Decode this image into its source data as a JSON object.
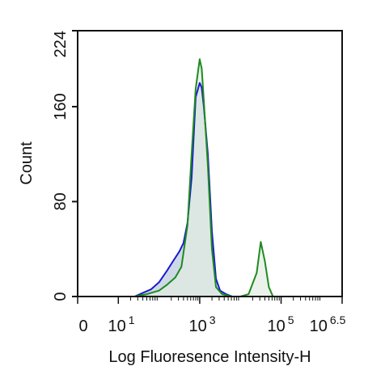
{
  "chart_data": {
    "type": "area",
    "title": "",
    "xlabel": "Log Fluoresence Intensity-H",
    "ylabel": "Count",
    "xscale": "log",
    "xlim": [
      0,
      6.5
    ],
    "ylim": [
      0,
      224
    ],
    "grid": false,
    "x_ticks": [
      {
        "base": "0",
        "exp": ""
      },
      {
        "base": "10",
        "exp": "1"
      },
      {
        "base": "10",
        "exp": "3"
      },
      {
        "base": "10",
        "exp": "5"
      },
      {
        "base": "10",
        "exp": "6.5"
      }
    ],
    "x_tick_positions": [
      0,
      1,
      3,
      5,
      6.5
    ],
    "y_ticks": [
      "0",
      "80",
      "160",
      "224"
    ],
    "y_tick_values": [
      0,
      80,
      160,
      224
    ],
    "series": [
      {
        "color": "#1a1ad0",
        "fill": "#c9d5e6",
        "x": [
          0.3,
          0.8,
          1.1,
          1.4,
          1.6,
          1.8,
          2.0,
          2.2,
          2.35,
          2.5,
          2.6,
          2.7,
          2.8,
          2.9,
          3.0,
          3.05,
          3.1,
          3.2,
          3.3,
          3.4,
          3.5,
          3.65,
          3.8,
          4.0
        ],
        "y": [
          0,
          0,
          0,
          0,
          3,
          6,
          12,
          22,
          30,
          38,
          45,
          62,
          100,
          168,
          180,
          176,
          160,
          120,
          55,
          15,
          5,
          2,
          0,
          0
        ]
      },
      {
        "color": "#1f8a1f",
        "fill": "#e3ede3",
        "x": [
          0.3,
          1.4,
          1.7,
          2.0,
          2.2,
          2.4,
          2.55,
          2.7,
          2.8,
          2.9,
          3.0,
          3.05,
          3.1,
          3.2,
          3.3,
          3.4,
          3.55,
          3.8,
          4.0,
          4.2,
          4.4,
          4.5,
          4.6,
          4.7,
          4.8,
          5.0
        ],
        "y": [
          0,
          0,
          2,
          5,
          10,
          16,
          25,
          60,
          120,
          175,
          200,
          192,
          165,
          110,
          40,
          8,
          2,
          0,
          0,
          2,
          20,
          46,
          30,
          8,
          0,
          0
        ]
      }
    ]
  }
}
